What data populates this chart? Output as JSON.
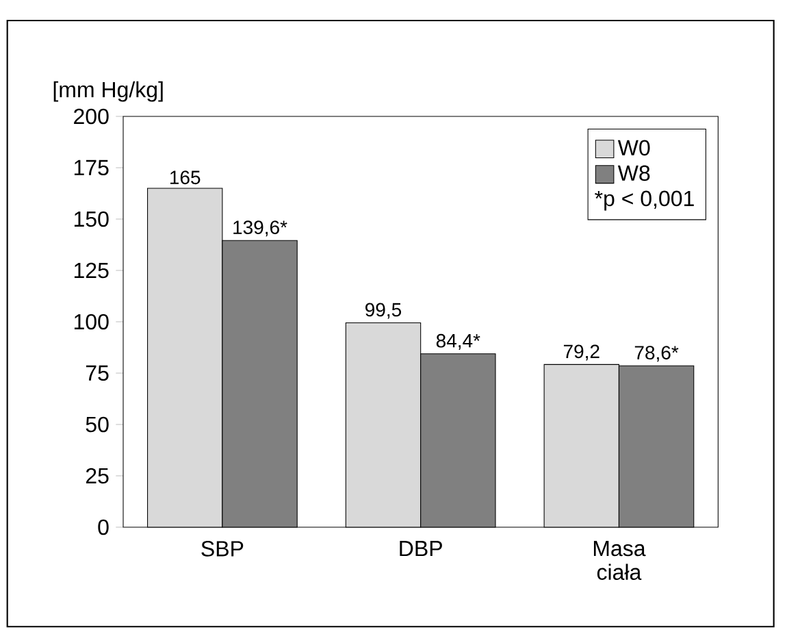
{
  "chart_data": {
    "type": "bar",
    "ylabel": "[mm Hg/kg]",
    "categories": [
      "SBP",
      "DBP",
      "Masa ciała"
    ],
    "series": [
      {
        "name": "W0",
        "color": "#d9d9d9",
        "values": [
          165,
          99.5,
          79.2
        ],
        "value_labels": [
          "165",
          "99,5",
          "79,2"
        ]
      },
      {
        "name": "W8",
        "color": "#808080",
        "values": [
          139.6,
          84.4,
          78.6
        ],
        "value_labels": [
          "139,6*",
          "84,4*",
          "78,6*"
        ]
      }
    ],
    "annotations": [
      "*p < 0,001"
    ],
    "ylim": [
      0,
      200
    ],
    "yticks": [
      0,
      25,
      50,
      75,
      100,
      125,
      150,
      175,
      200
    ],
    "grid": false,
    "legend": "top right"
  }
}
